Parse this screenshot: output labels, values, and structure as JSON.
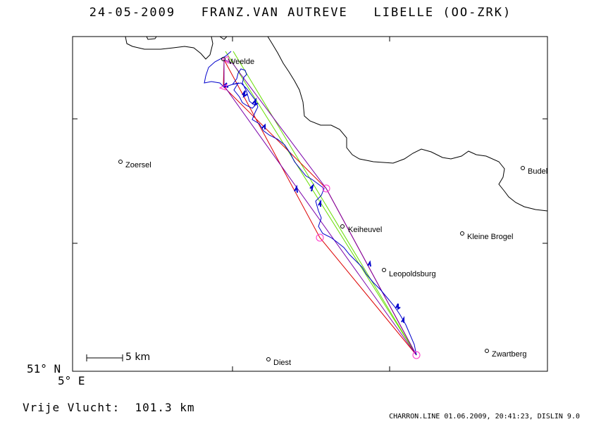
{
  "title": "24-05-2009   FRANZ.VAN AUTREVE   LIBELLE (OO-ZRK)",
  "axis": {
    "lat_label": "51° N",
    "lon_label": "5° E"
  },
  "scale_bar": {
    "label": "5 km"
  },
  "distance_text": "Vrije Vlucht:  101.3 km",
  "footer": "CHARRON.LINE 01.06.2009, 20:41:23, DISLIN 9.0",
  "towns": [
    {
      "name": "Weelde"
    },
    {
      "name": "Zoersel"
    },
    {
      "name": "Budel"
    },
    {
      "name": "Keiheuvel"
    },
    {
      "name": "Kleine Brogel"
    },
    {
      "name": "Leopoldsburg"
    },
    {
      "name": "Diest"
    },
    {
      "name": "Zwartberg"
    }
  ],
  "colors": {
    "track": "#0000cc",
    "task": "#dd0000",
    "triangle": "#7a00aa",
    "direct": "#66dd00",
    "turnpoint": "#ff33cc",
    "border": "#000000"
  }
}
